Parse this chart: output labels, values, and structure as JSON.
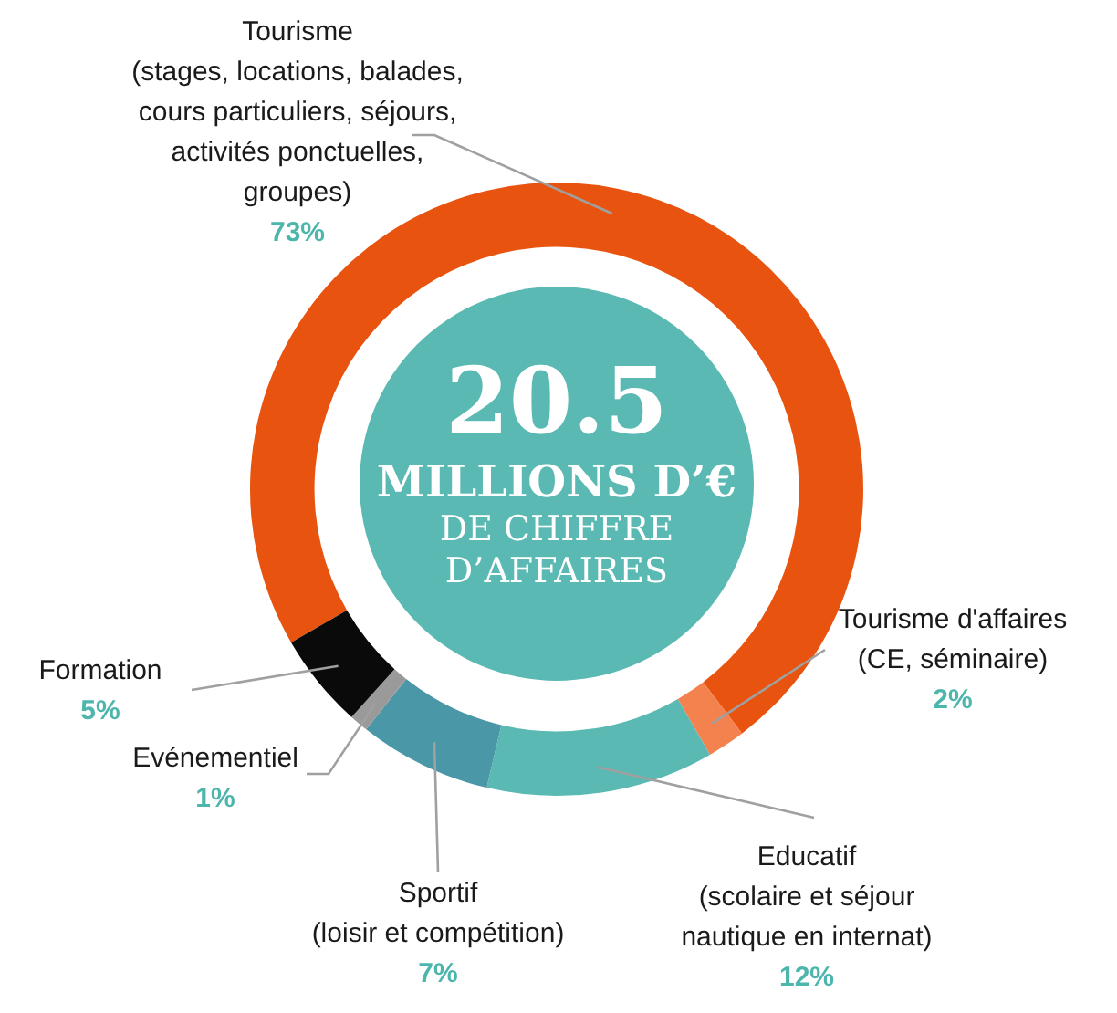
{
  "chart_data": {
    "type": "donut",
    "categories": [
      "Tourisme (stages, locations, balades, cours particuliers, séjours, activités ponctuelles, groupes)",
      "Tourisme d'affaires (CE, séminaire)",
      "Educatif (scolaire et séjour nautique en internat)",
      "Sportif (loisir et compétition)",
      "Evénementiel",
      "Formation"
    ],
    "values": [
      73,
      2,
      12,
      7,
      1,
      5
    ],
    "value_labels": [
      "73%",
      "2%",
      "12%",
      "7%",
      "1%",
      "5%"
    ],
    "colors": [
      "#e8540f",
      "#f4824f",
      "#5ab9b3",
      "#4a97a8",
      "#9a9a9a",
      "#0a0a0a"
    ],
    "annotations": [
      "20.5",
      "MILLIONS D’€",
      "DE CHIFFRE",
      "D’AFFAIRES"
    ],
    "legend": false
  }
}
